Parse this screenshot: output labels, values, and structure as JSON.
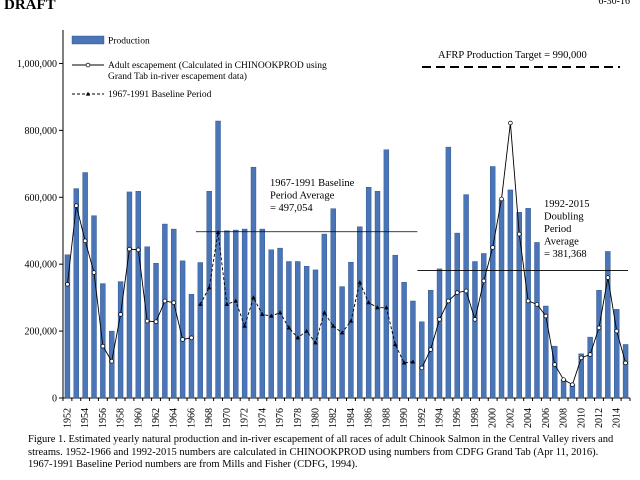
{
  "header": {
    "draft": "DRAFT",
    "date": "6-30-16"
  },
  "legend": {
    "production": "Production",
    "escapement_line1": "Adult escapement (Calculated in CHINOOKPROD using",
    "escapement_line2": "Grand Tab in-river escapement data)",
    "baseline": "1967-1991 Baseline Period"
  },
  "annotations": {
    "afrp": "AFRP Production Target = 990,000",
    "baseline_avg": [
      "1967-1991 Baseline",
      "Period Average",
      "= 497,054"
    ],
    "doubling_avg": [
      "1992-2015",
      "Doubling",
      "Period",
      "Average",
      "= 381,368"
    ]
  },
  "caption": "Figure 1.  Estimated yearly natural production and in-river escapement of all races of adult Chinook Salmon in the Central Valley rivers and streams.  1952-1966 and 1992-2015 numbers are calculated in CHINOOKPROD using numbers from CDFG Grand Tab (Apr 11, 2016).  1967-1991 Baseline Period numbers are from Mills and Fisher (CDFG, 1994).",
  "chart_data": {
    "type": "bar",
    "ylim": [
      0,
      1100000
    ],
    "yticks": [
      0,
      200000,
      400000,
      600000,
      800000,
      1000000
    ],
    "ytick_labels": [
      "0",
      "200,000",
      "400,000",
      "600,000",
      "800,000",
      "1,000,000"
    ],
    "xtick_labels": [
      "1952",
      "1954",
      "1956",
      "1958",
      "1960",
      "1962",
      "1964",
      "1966",
      "1968",
      "1970",
      "1972",
      "1974",
      "1976",
      "1978",
      "1980",
      "1982",
      "1984",
      "1986",
      "1988",
      "1990",
      "1992",
      "1994",
      "1996",
      "1998",
      "2000",
      "2002",
      "2004",
      "2006",
      "2008",
      "2010",
      "2012",
      "2014"
    ],
    "years": [
      1952,
      1953,
      1954,
      1955,
      1956,
      1957,
      1958,
      1959,
      1960,
      1961,
      1962,
      1963,
      1964,
      1965,
      1966,
      1967,
      1968,
      1969,
      1970,
      1971,
      1972,
      1973,
      1974,
      1975,
      1976,
      1977,
      1978,
      1979,
      1980,
      1981,
      1982,
      1983,
      1984,
      1985,
      1986,
      1987,
      1988,
      1989,
      1990,
      1991,
      1992,
      1993,
      1994,
      1995,
      1996,
      1997,
      1998,
      1999,
      2000,
      2001,
      2002,
      2003,
      2004,
      2005,
      2006,
      2007,
      2008,
      2009,
      2010,
      2011,
      2012,
      2013,
      2014,
      2015
    ],
    "production": [
      428000,
      626000,
      674000,
      545000,
      342000,
      200000,
      348000,
      616000,
      618000,
      452000,
      403000,
      520000,
      505000,
      410000,
      310000,
      405000,
      618000,
      828000,
      500000,
      502000,
      505000,
      690000,
      505000,
      443000,
      448000,
      408000,
      408000,
      394000,
      383000,
      490000,
      566000,
      333000,
      406000,
      512000,
      630000,
      618000,
      742000,
      427000,
      346000,
      290000,
      228000,
      322000,
      386000,
      750000,
      493000,
      608000,
      408000,
      432000,
      692000,
      592000,
      622000,
      555000,
      567000,
      465000,
      275000,
      155000,
      55000,
      40000,
      132000,
      182000,
      322000,
      438000,
      265000,
      160000
    ],
    "escapement": [
      340000,
      575000,
      470000,
      375000,
      155000,
      110000,
      250000,
      445000,
      443000,
      230000,
      228000,
      290000,
      285000,
      175000,
      180000,
      null,
      null,
      null,
      null,
      null,
      null,
      null,
      null,
      null,
      null,
      null,
      null,
      null,
      null,
      null,
      null,
      null,
      null,
      null,
      null,
      null,
      null,
      null,
      null,
      null,
      90000,
      145000,
      235000,
      290000,
      315000,
      320000,
      235000,
      350000,
      450000,
      595000,
      822000,
      490000,
      290000,
      280000,
      245000,
      100000,
      55000,
      40000,
      120000,
      130000,
      210000,
      360000,
      200000,
      105000
    ],
    "baseline": [
      280000,
      330000,
      495000,
      280000,
      290000,
      215000,
      300000,
      250000,
      245000,
      255000,
      210000,
      180000,
      200000,
      165000,
      255000,
      215000,
      195000,
      230000,
      345000,
      285000,
      270000,
      270000,
      160000,
      105000,
      108000
    ],
    "baseline_average": 497054,
    "doubling_average": 381368,
    "afrp_target": 990000
  }
}
